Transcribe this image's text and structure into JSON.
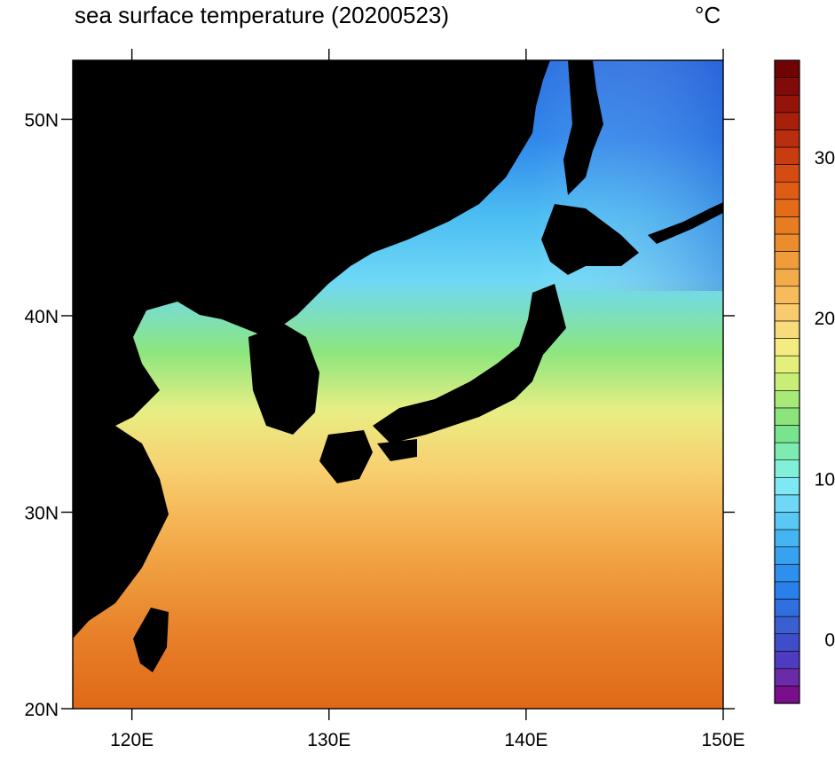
{
  "figure": {
    "title": "sea surface temperature (20200523)",
    "units": "°C"
  },
  "map": {
    "lon_range": [
      117,
      150
    ],
    "lat_range": [
      20,
      53
    ],
    "lon_ticks": [
      120,
      130,
      140,
      150
    ],
    "lat_ticks": [
      20,
      30,
      40,
      50
    ],
    "lon_tick_labels": [
      "120E",
      "130E",
      "140E",
      "150E"
    ],
    "lat_tick_labels": [
      "20N",
      "30N",
      "40N",
      "50N"
    ],
    "land_color": "#000000"
  },
  "colorbar": {
    "range": [
      -4,
      36
    ],
    "levels_step": 1,
    "tick_values": [
      0,
      10,
      20,
      30
    ],
    "tick_labels": [
      "0",
      "10",
      "20",
      "30"
    ],
    "colors": [
      "#7a0f8c",
      "#6b2aa8",
      "#4f3bbf",
      "#3f4dc8",
      "#3a5fd0",
      "#2f6fe0",
      "#2a80ea",
      "#2d90ee",
      "#36a2f0",
      "#45b5f2",
      "#5ac8f5",
      "#6fd8f7",
      "#7ee8f4",
      "#82f0d8",
      "#7cecb0",
      "#78e48e",
      "#8ce47c",
      "#a8ea78",
      "#c8ee76",
      "#e4f07a",
      "#f4ec80",
      "#f8dc7c",
      "#f8cc6e",
      "#f6bc5c",
      "#f4ac4a",
      "#f09c3a",
      "#ec8c2c",
      "#e87c20",
      "#e46c18",
      "#de5c14",
      "#d44c12",
      "#c83c10",
      "#b82e0e",
      "#a6200c",
      "#94140a",
      "#820a08",
      "#700404"
    ]
  }
}
